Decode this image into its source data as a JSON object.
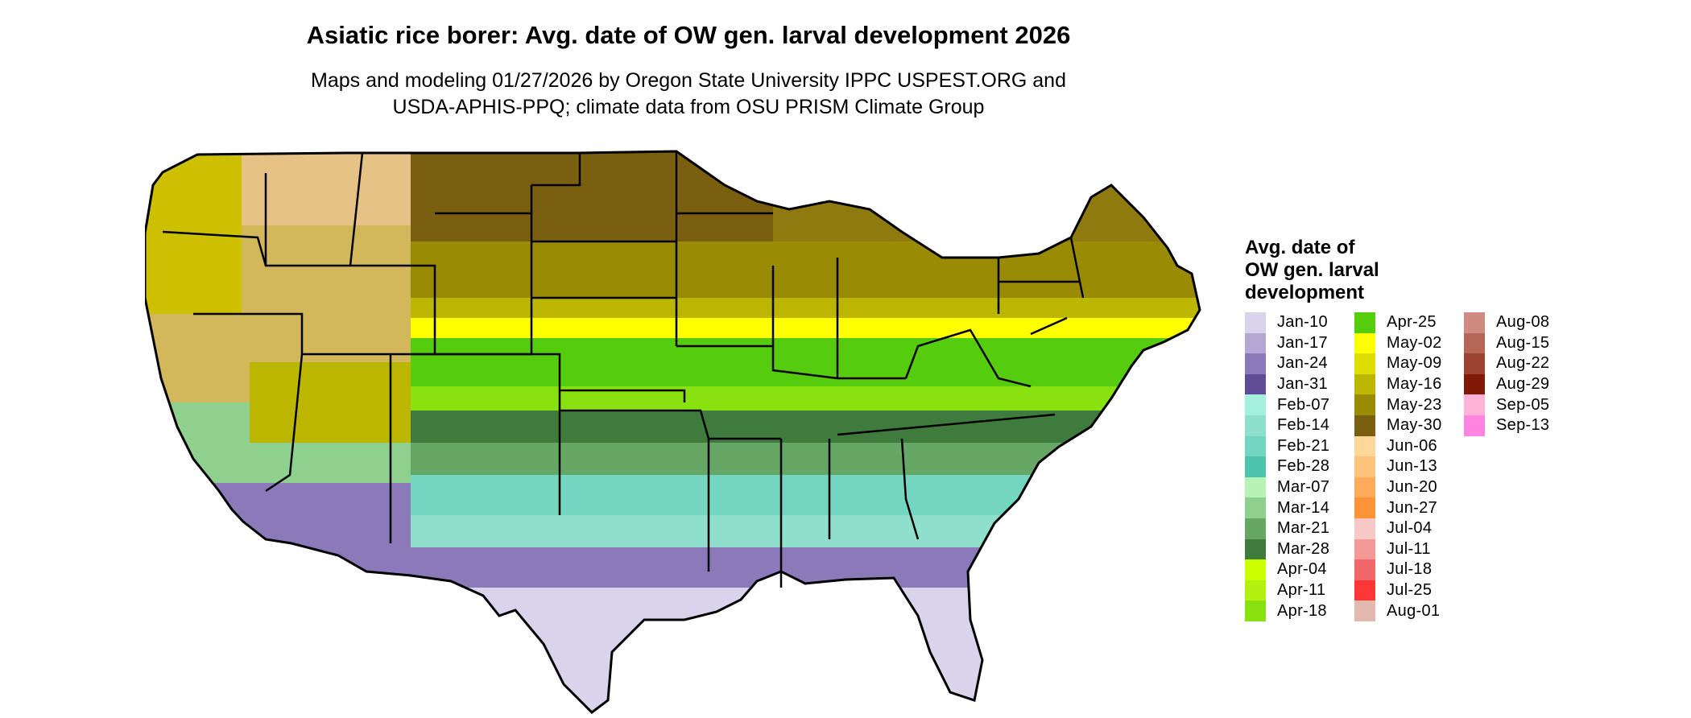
{
  "title": "Asiatic rice borer: Avg. date of OW gen. larval development 2026",
  "subtitle_line1": "Maps and modeling 01/27/2026 by Oregon State University IPPC USPEST.ORG and",
  "subtitle_line2": "USDA-APHIS-PPQ; climate data from OSU PRISM Climate Group",
  "legend": {
    "title_line1": "Avg. date of",
    "title_line2": "OW gen. larval",
    "title_line3": "development",
    "columns": [
      [
        {
          "label": "Jan-10",
          "color": "#d9d4ec"
        },
        {
          "label": "Jan-17",
          "color": "#b3a7d3"
        },
        {
          "label": "Jan-24",
          "color": "#8c79ba"
        },
        {
          "label": "Jan-31",
          "color": "#604c96"
        },
        {
          "label": "Feb-07",
          "color": "#a4f0dd"
        },
        {
          "label": "Feb-14",
          "color": "#8ee0cd"
        },
        {
          "label": "Feb-21",
          "color": "#72d6c1"
        },
        {
          "label": "Feb-28",
          "color": "#4cc4ae"
        },
        {
          "label": "Mar-07",
          "color": "#b7f2b6"
        },
        {
          "label": "Mar-14",
          "color": "#8ed08d"
        },
        {
          "label": "Mar-21",
          "color": "#67a765"
        },
        {
          "label": "Mar-28",
          "color": "#3f7b3d"
        },
        {
          "label": "Apr-04",
          "color": "#ccff00"
        },
        {
          "label": "Apr-11",
          "color": "#b2f20e"
        },
        {
          "label": "Apr-18",
          "color": "#88e20f"
        }
      ],
      [
        {
          "label": "Apr-25",
          "color": "#55cc0d"
        },
        {
          "label": "May-02",
          "color": "#ffff00"
        },
        {
          "label": "May-09",
          "color": "#dddd00"
        },
        {
          "label": "May-16",
          "color": "#bbb600"
        },
        {
          "label": "May-23",
          "color": "#9a8b05"
        },
        {
          "label": "May-30",
          "color": "#7a5f10"
        },
        {
          "label": "Jun-06",
          "color": "#ffd79b"
        },
        {
          "label": "Jun-13",
          "color": "#ffc37c"
        },
        {
          "label": "Jun-20",
          "color": "#ffab5a"
        },
        {
          "label": "Jun-27",
          "color": "#ff9338"
        },
        {
          "label": "Jul-04",
          "color": "#f6c8c6"
        },
        {
          "label": "Jul-11",
          "color": "#f49898"
        },
        {
          "label": "Jul-18",
          "color": "#f26868"
        },
        {
          "label": "Jul-25",
          "color": "#ff3636"
        },
        {
          "label": "Aug-01",
          "color": "#e3b8ae"
        }
      ],
      [
        {
          "label": "Aug-08",
          "color": "#cf8b7f"
        },
        {
          "label": "Aug-15",
          "color": "#b56657"
        },
        {
          "label": "Aug-22",
          "color": "#9c4331"
        },
        {
          "label": "Aug-29",
          "color": "#7f1a06"
        },
        {
          "label": "Sep-05",
          "color": "#ffb3d9"
        },
        {
          "label": "Sep-13",
          "color": "#ff85e0"
        }
      ]
    ]
  }
}
